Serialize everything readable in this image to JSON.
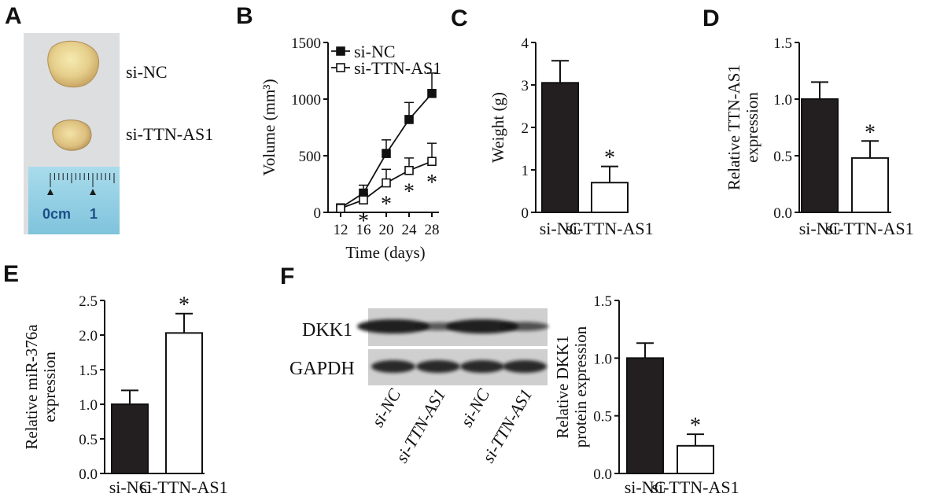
{
  "panel_letters": [
    "A",
    "B",
    "C",
    "D",
    "E",
    "F"
  ],
  "panelA": {
    "label": "A",
    "photo_labels": [
      "si-NC",
      "si-TTN-AS1"
    ],
    "ruler_labels": [
      "0cm",
      "1"
    ]
  },
  "panelF_blot": {
    "label": "F",
    "rows": [
      "DKK1",
      "GAPDH"
    ],
    "lanes": [
      "si-NC",
      "si-TTN-AS1",
      "si-NC",
      "si-TTN-AS1"
    ],
    "dkk1_band_intensity": [
      1.0,
      0.35,
      1.0,
      0.45
    ],
    "gapdh_band_intensity": [
      1.0,
      1.0,
      1.0,
      1.0
    ]
  },
  "chart_data": [
    {
      "id": "B",
      "type": "line",
      "x": [
        12,
        16,
        20,
        24,
        28
      ],
      "xlabel": "Time (days)",
      "ylabel": "Volume (mm³)",
      "ylim": [
        0,
        1500
      ],
      "yticks": [
        0,
        500,
        1000,
        1500
      ],
      "legend": "top-left",
      "series": [
        {
          "name": "si-NC",
          "marker": "filled-square",
          "values": [
            40,
            170,
            520,
            820,
            1050
          ],
          "errors": [
            25,
            70,
            120,
            150,
            180
          ]
        },
        {
          "name": "si-TTN-AS1",
          "marker": "open-square",
          "values": [
            35,
            110,
            260,
            370,
            450
          ],
          "errors": [
            20,
            50,
            120,
            110,
            160
          ],
          "significance": [
            "",
            "*",
            "*",
            "*",
            "*"
          ]
        }
      ]
    },
    {
      "id": "C",
      "type": "bar",
      "categories": [
        "si-NC",
        "si-TTN-AS1"
      ],
      "values": [
        3.05,
        0.7
      ],
      "errors": [
        0.52,
        0.38
      ],
      "fills": [
        "#231f20",
        "#ffffff"
      ],
      "significance": [
        "",
        "*"
      ],
      "ylabel": "Weight (g)",
      "ylim": [
        0,
        4
      ],
      "yticks": [
        0,
        1,
        2,
        3,
        4
      ]
    },
    {
      "id": "D",
      "type": "bar",
      "categories": [
        "si-NC",
        "si-TTN-AS1"
      ],
      "values": [
        1.0,
        0.48
      ],
      "errors": [
        0.15,
        0.15
      ],
      "fills": [
        "#231f20",
        "#ffffff"
      ],
      "significance": [
        "",
        "*"
      ],
      "ylabel": [
        "Relative TTN-AS1",
        "expression"
      ],
      "ylim": [
        0,
        1.5
      ],
      "yticks": [
        "0.0",
        "0.5",
        "1.0",
        "1.5"
      ]
    },
    {
      "id": "E",
      "type": "bar",
      "categories": [
        "si-NC",
        "si-TTN-AS1"
      ],
      "values": [
        1.0,
        2.03
      ],
      "errors": [
        0.2,
        0.28
      ],
      "fills": [
        "#231f20",
        "#ffffff"
      ],
      "significance": [
        "",
        "*"
      ],
      "ylabel": [
        "Relative miR-376a",
        "expression"
      ],
      "ylim": [
        0,
        2.5
      ],
      "yticks": [
        "0.0",
        "0.5",
        "1.0",
        "1.5",
        "2.0",
        "2.5"
      ]
    },
    {
      "id": "F",
      "type": "bar",
      "categories": [
        "si-NC",
        "si-TTN-AS1"
      ],
      "values": [
        1.0,
        0.24
      ],
      "errors": [
        0.13,
        0.1
      ],
      "fills": [
        "#231f20",
        "#ffffff"
      ],
      "significance": [
        "",
        "*"
      ],
      "ylabel": [
        "Relative DKK1",
        "protein expression"
      ],
      "ylim": [
        0,
        1.5
      ],
      "yticks": [
        "0.0",
        "0.5",
        "1.0",
        "1.5"
      ]
    }
  ]
}
